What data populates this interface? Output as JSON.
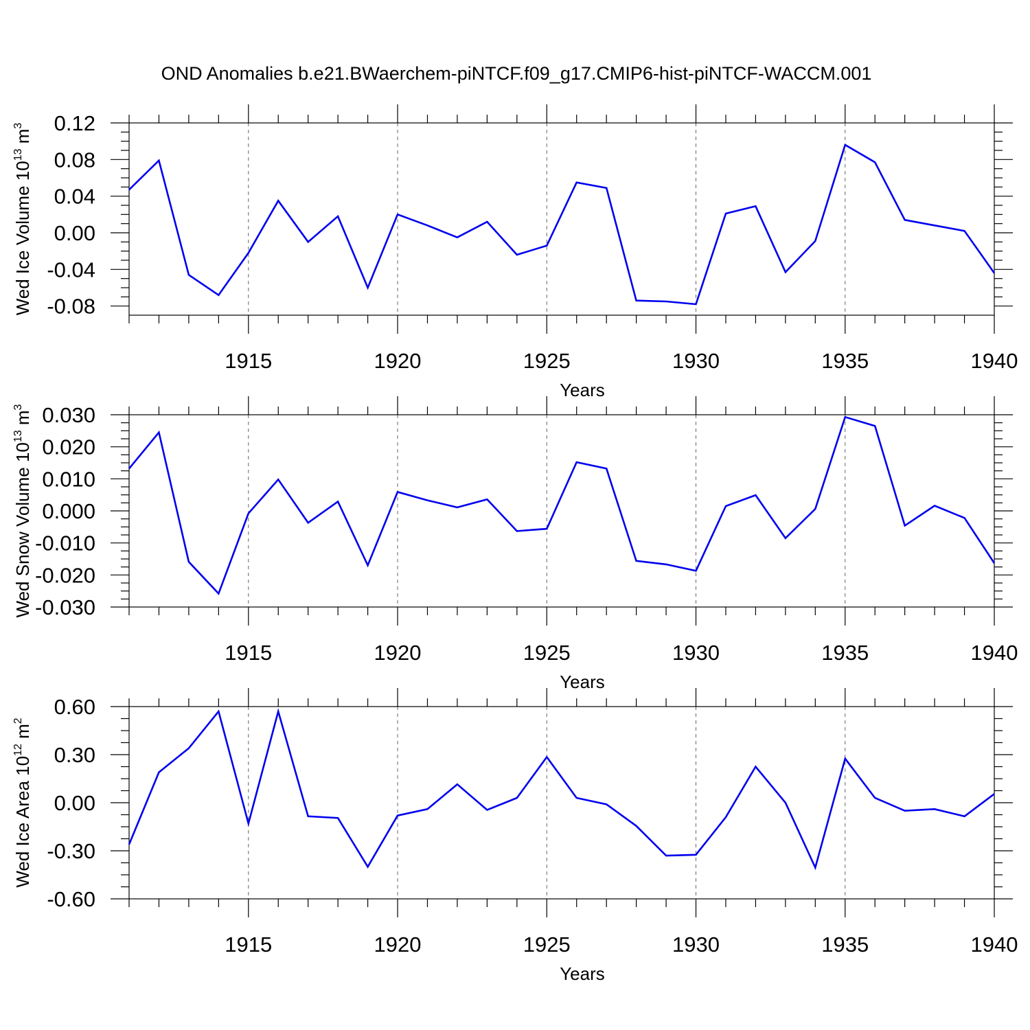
{
  "chart_data": [
    {
      "type": "line",
      "title": "OND Anomalies b.e21.BWaerchem-piNTCF.f09_g17.CMIP6-hist-piNTCF-WACCM.001",
      "xlabel": "Years",
      "ylabel": {
        "prefix": "Wed Ice Volume 10",
        "exp": "13",
        "unit": " m",
        "unit_exp": "3"
      },
      "xlim": [
        1911,
        1940
      ],
      "ylim": [
        -0.09,
        0.12
      ],
      "xticks": [
        "1915",
        "1920",
        "1925",
        "1930",
        "1935",
        "1940"
      ],
      "yticks": [
        "0.12",
        "0.08",
        "0.04",
        "0.00",
        "-0.04",
        "-0.08"
      ],
      "x": [
        1911,
        1912,
        1913,
        1914,
        1915,
        1916,
        1917,
        1918,
        1919,
        1920,
        1921,
        1922,
        1923,
        1924,
        1925,
        1926,
        1927,
        1928,
        1929,
        1930,
        1931,
        1932,
        1933,
        1934,
        1935,
        1936,
        1937,
        1938,
        1939,
        1940
      ],
      "values": [
        0.047,
        0.079,
        -0.046,
        -0.068,
        -0.022,
        0.035,
        -0.01,
        0.018,
        -0.06,
        0.02,
        0.008,
        -0.005,
        0.012,
        -0.024,
        -0.014,
        0.055,
        0.049,
        -0.074,
        -0.075,
        -0.078,
        0.021,
        0.029,
        -0.043,
        -0.009,
        0.096,
        0.077,
        0.014,
        0.008,
        0.002,
        -0.044
      ],
      "series_color": "#0000ee"
    },
    {
      "type": "line",
      "xlabel": "Years",
      "ylabel": {
        "prefix": "Wed Snow Volume 10",
        "exp": "13",
        "unit": " m",
        "unit_exp": "3"
      },
      "xlim": [
        1911,
        1940
      ],
      "ylim": [
        -0.03,
        0.03
      ],
      "xticks": [
        "1915",
        "1920",
        "1925",
        "1930",
        "1935",
        "1940"
      ],
      "yticks": [
        "0.030",
        "0.020",
        "0.010",
        "0.000",
        "-0.010",
        "-0.020",
        "-0.030"
      ],
      "x": [
        1911,
        1912,
        1913,
        1914,
        1915,
        1916,
        1917,
        1918,
        1919,
        1920,
        1921,
        1922,
        1923,
        1924,
        1925,
        1926,
        1927,
        1928,
        1929,
        1930,
        1931,
        1932,
        1933,
        1934,
        1935,
        1936,
        1937,
        1938,
        1939,
        1940
      ],
      "values": [
        0.0132,
        0.0245,
        -0.0159,
        -0.0258,
        -0.0008,
        0.0098,
        -0.0037,
        0.0029,
        -0.017,
        0.0059,
        0.0033,
        0.0011,
        0.0036,
        -0.0063,
        -0.0056,
        0.0152,
        0.0132,
        -0.0156,
        -0.0167,
        -0.0187,
        0.0015,
        0.0049,
        -0.0085,
        0.0006,
        0.0293,
        0.0265,
        -0.0046,
        0.0016,
        -0.0022,
        -0.0163
      ],
      "series_color": "#0000ee"
    },
    {
      "type": "line",
      "xlabel": "Years",
      "ylabel": {
        "prefix": "Wed Ice Area 10",
        "exp": "12",
        "unit": " m",
        "unit_exp": "2"
      },
      "xlim": [
        1911,
        1940
      ],
      "ylim": [
        -0.6,
        0.6
      ],
      "xticks": [
        "1915",
        "1920",
        "1925",
        "1930",
        "1935",
        "1940"
      ],
      "yticks": [
        "0.60",
        "0.30",
        "0.00",
        "-0.30",
        "-0.60"
      ],
      "x": [
        1911,
        1912,
        1913,
        1914,
        1915,
        1916,
        1917,
        1918,
        1919,
        1920,
        1921,
        1922,
        1923,
        1924,
        1925,
        1926,
        1927,
        1928,
        1929,
        1930,
        1931,
        1932,
        1933,
        1934,
        1935,
        1936,
        1937,
        1938,
        1939,
        1940
      ],
      "values": [
        -0.26,
        0.19,
        0.34,
        0.57,
        -0.13,
        0.57,
        -0.085,
        -0.095,
        -0.4,
        -0.08,
        -0.04,
        0.115,
        -0.045,
        0.03,
        0.285,
        0.03,
        -0.01,
        -0.145,
        -0.33,
        -0.325,
        -0.09,
        0.225,
        0.0,
        -0.405,
        0.275,
        0.03,
        -0.05,
        -0.04,
        -0.085,
        0.055
      ],
      "series_color": "#0000ee"
    }
  ]
}
